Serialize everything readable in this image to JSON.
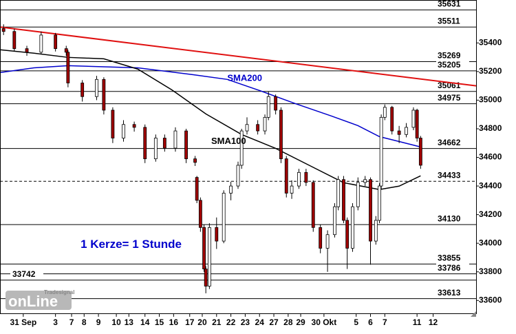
{
  "chart_data": {
    "type": "candlestick",
    "annotations": [
      {
        "text": "SMA200",
        "x": 127,
        "y": 35150,
        "color": "#0000cc"
      },
      {
        "text": "SMA100",
        "x": 118,
        "y": 34710,
        "color": "#000000"
      },
      {
        "text": "1 Kerze= 1 Stunde",
        "x": 45,
        "y": 33990,
        "color": "#0000cc"
      }
    ],
    "xlim": [
      0,
      266
    ],
    "ylim": [
      33510,
      35700
    ],
    "yticks": [
      33600,
      33800,
      34000,
      34200,
      34400,
      34600,
      34800,
      35000,
      35200,
      35400
    ],
    "xticks": [
      {
        "value": 13,
        "label": "31 Sep"
      },
      {
        "value": 31,
        "label": "3"
      },
      {
        "value": 40,
        "label": "7"
      },
      {
        "value": 47,
        "label": "8"
      },
      {
        "value": 55,
        "label": "9"
      },
      {
        "value": 65,
        "label": "10"
      },
      {
        "value": 72,
        "label": "13"
      },
      {
        "value": 81,
        "label": "14"
      },
      {
        "value": 89,
        "label": "15"
      },
      {
        "value": 97,
        "label": "16"
      },
      {
        "value": 106,
        "label": "17"
      },
      {
        "value": 113,
        "label": "20"
      },
      {
        "value": 121,
        "label": "21"
      },
      {
        "value": 129,
        "label": "22"
      },
      {
        "value": 137,
        "label": "23"
      },
      {
        "value": 145,
        "label": "24"
      },
      {
        "value": 153,
        "label": "27"
      },
      {
        "value": 161,
        "label": "28"
      },
      {
        "value": 168,
        "label": "29"
      },
      {
        "value": 181,
        "label": "30 Okt"
      },
      {
        "value": 199,
        "label": "5"
      },
      {
        "value": 207,
        "label": "6"
      },
      {
        "value": 215,
        "label": "7"
      },
      {
        "value": 233,
        "label": "11"
      },
      {
        "value": 242,
        "label": "12"
      }
    ],
    "colors": {
      "up": "#ffffff",
      "down": "#a00000",
      "outline": "#000000"
    },
    "x": [
      2,
      8,
      15,
      23,
      31,
      37,
      38,
      46,
      54,
      58,
      63,
      69,
      75,
      81,
      87,
      92,
      98,
      104,
      109,
      110,
      112,
      114,
      115,
      117,
      121,
      125,
      129,
      133,
      135,
      138,
      144,
      148,
      150,
      154,
      157,
      160,
      163,
      167,
      171,
      175,
      179,
      183,
      187,
      189,
      192,
      194,
      197,
      200,
      204,
      207,
      210,
      212,
      213,
      215,
      219,
      223,
      227,
      231,
      233,
      235
    ],
    "open": [
      35500,
      35480,
      35360,
      35335,
      35455,
      35360,
      35335,
      35120,
      35025,
      35145,
      34930,
      34735,
      34830,
      34810,
      34590,
      34735,
      34665,
      34785,
      34590,
      34460,
      34300,
      34110,
      33820,
      33700,
      34110,
      34015,
      34350,
      34400,
      34545,
      34785,
      34830,
      34785,
      34880,
      35025,
      34930,
      34590,
      34350,
      34400,
      34495,
      34425,
      34110,
      33965,
      34060,
      34255,
      34445,
      34160,
      33965,
      34255,
      34425,
      34445,
      34015,
      34160,
      34400,
      34880,
      34950,
      34785,
      34760,
      34810,
      34930,
      34735
    ],
    "high": [
      35530,
      35500,
      35380,
      35480,
      35470,
      35380,
      35350,
      35140,
      35170,
      35160,
      34950,
      34860,
      34850,
      34830,
      34760,
      34760,
      34810,
      34800,
      34610,
      34470,
      34320,
      34130,
      33840,
      34140,
      34180,
      34370,
      34430,
      34570,
      34800,
      34880,
      34860,
      34900,
      35060,
      35040,
      34950,
      34610,
      34440,
      34520,
      34520,
      34440,
      34130,
      34090,
      34280,
      34470,
      34470,
      34180,
      34280,
      34460,
      34470,
      34460,
      34190,
      34420,
      34900,
      34970,
      34960,
      34820,
      34840,
      34950,
      34940,
      34750
    ],
    "low": [
      35455,
      35340,
      35310,
      35320,
      35340,
      35310,
      35090,
      34990,
      35000,
      34900,
      34700,
      34710,
      34780,
      34560,
      34570,
      34640,
      34640,
      34560,
      34540,
      34280,
      34080,
      33800,
      33650,
      33680,
      33960,
      34000,
      34300,
      34380,
      34520,
      34760,
      34760,
      34760,
      34860,
      34900,
      34560,
      34320,
      34310,
      34380,
      34400,
      34080,
      33930,
      33800,
      34040,
      34230,
      34140,
      33820,
      33940,
      34230,
      34400,
      33850,
      33990,
      34140,
      34380,
      34860,
      34760,
      34700,
      34740,
      34790,
      34710,
      34520
    ],
    "close": [
      35480,
      35360,
      35335,
      35455,
      35360,
      35335,
      35120,
      35025,
      35145,
      34930,
      34735,
      34830,
      34810,
      34590,
      34735,
      34665,
      34785,
      34590,
      34565,
      34300,
      34110,
      33820,
      33700,
      34110,
      34015,
      34350,
      34400,
      34545,
      34785,
      34830,
      34785,
      34880,
      35025,
      34930,
      34590,
      34350,
      34400,
      34495,
      34425,
      34110,
      33965,
      34060,
      34255,
      34445,
      34160,
      33965,
      34255,
      34425,
      34445,
      34015,
      34160,
      34400,
      34880,
      34950,
      34785,
      34760,
      34810,
      34930,
      34735,
      34545
    ],
    "series": [
      {
        "color": "#0000cc",
        "x": [
          0,
          19,
          38,
          77,
          108,
          127,
          146,
          165,
          185,
          200,
          212,
          223,
          235
        ],
        "values": [
          35193,
          35226,
          35241,
          35226,
          35178,
          35145,
          35063,
          34976,
          34890,
          34822,
          34745,
          34711,
          34673
        ]
      },
      {
        "color": "#000000",
        "x": [
          0,
          19,
          38,
          58,
          77,
          96,
          115,
          135,
          154,
          173,
          192,
          212,
          223,
          235
        ],
        "values": [
          35352,
          35328,
          35299,
          35289,
          35217,
          35072,
          34904,
          34760,
          34663,
          34543,
          34423,
          34375,
          34399,
          34471
        ]
      }
    ],
    "trendline": {
      "color": "#e01010",
      "x": [
        0,
        266
      ],
      "values": [
        35511,
        35100
      ]
    },
    "levels": [
      {
        "value": 35631
      },
      {
        "value": 35511
      },
      {
        "value": 35269
      },
      {
        "value": 35205
      },
      {
        "value": 35061
      },
      {
        "value": 34975
      },
      {
        "value": 34662
      },
      {
        "value": 34433,
        "style": "dashed"
      },
      {
        "value": 34130
      },
      {
        "value": 33855
      },
      {
        "value": 33786
      },
      {
        "value": 33742,
        "label_side": "left"
      },
      {
        "value": 33613
      }
    ]
  },
  "logo": {
    "brand": "Tradesignal",
    "name": "onLine"
  }
}
